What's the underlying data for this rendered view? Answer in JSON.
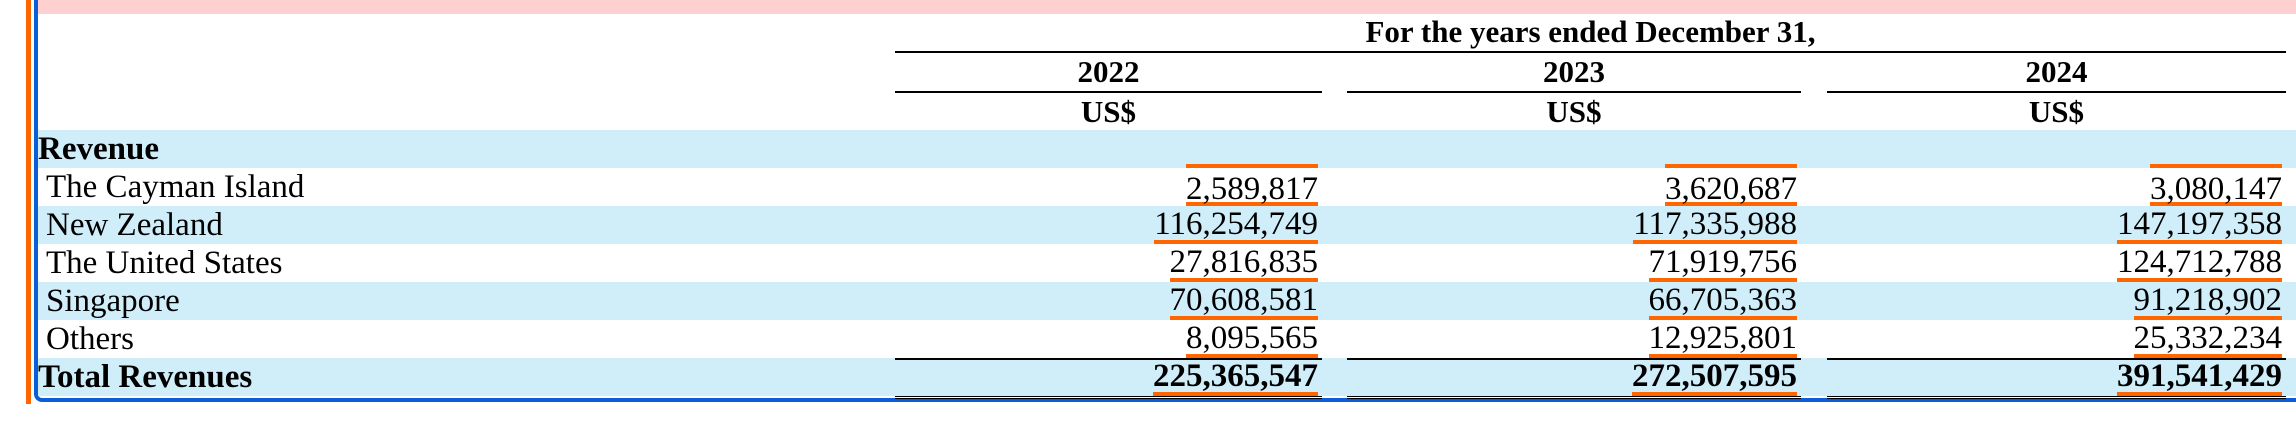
{
  "header": {
    "title": "For the years ended December 31,",
    "columns": [
      {
        "year": "2022",
        "currency": "US$"
      },
      {
        "year": "2023",
        "currency": "US$"
      },
      {
        "year": "2024",
        "currency": "US$"
      }
    ]
  },
  "section_label": "Revenue",
  "rows": [
    {
      "label": "The Cayman Island",
      "values": [
        "2,589,817",
        "3,620,687",
        "3,080,147"
      ]
    },
    {
      "label": "New Zealand",
      "values": [
        "116,254,749",
        "117,335,988",
        "147,197,358"
      ]
    },
    {
      "label": "The United States",
      "values": [
        "27,816,835",
        "71,919,756",
        "124,712,788"
      ]
    },
    {
      "label": "Singapore",
      "values": [
        "70,608,581",
        "66,705,363",
        "91,218,902"
      ]
    },
    {
      "label": "Others",
      "values": [
        "8,095,565",
        "12,925,801",
        "25,332,234"
      ]
    }
  ],
  "total": {
    "label": "Total Revenues",
    "values": [
      "225,365,547",
      "272,507,595",
      "391,541,429"
    ]
  },
  "colors": {
    "highlight": "#ff6600",
    "frame": "#0a5fd6",
    "row_band": "#d0eefa",
    "top_strip": "#ffd0d0"
  }
}
